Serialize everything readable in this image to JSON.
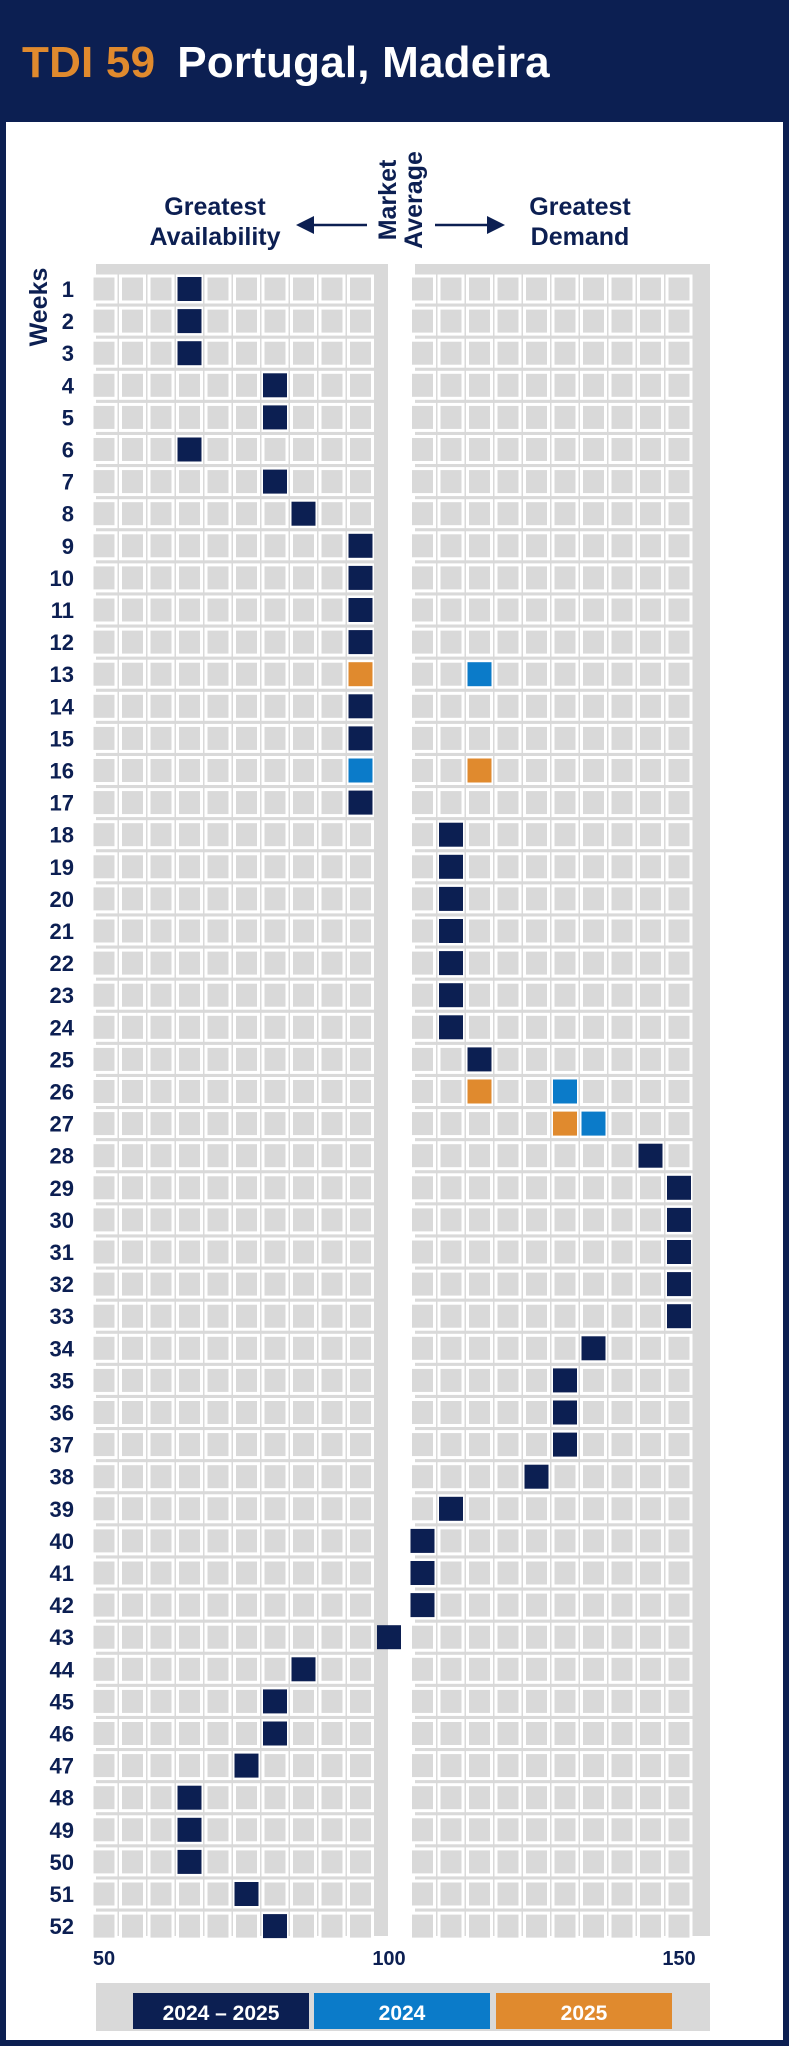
{
  "header": {
    "code": "TDI 59",
    "title": "Portugal, Madeira"
  },
  "labels": {
    "left": [
      "Greatest",
      "Availability"
    ],
    "middle": [
      "Market",
      "Average"
    ],
    "right": [
      "Greatest",
      "Demand"
    ],
    "weeks": "Weeks"
  },
  "colors": {
    "header_bg": "#0c1f52",
    "accent": "#e08a2e",
    "series_2024_2025": "#0c1f52",
    "series_2024": "#0b7bc9",
    "series_2025": "#e08a2e",
    "cell": "#d9d9d9",
    "grid_bg": "#d9d9d9"
  },
  "chart_data": {
    "type": "heatmap",
    "x_ticks": [
      50,
      100,
      150
    ],
    "xlim": [
      50,
      150
    ],
    "x_step": 5,
    "market_average": 100,
    "weeks": [
      1,
      2,
      3,
      4,
      5,
      6,
      7,
      8,
      9,
      10,
      11,
      12,
      13,
      14,
      15,
      16,
      17,
      18,
      19,
      20,
      21,
      22,
      23,
      24,
      25,
      26,
      27,
      28,
      29,
      30,
      31,
      32,
      33,
      34,
      35,
      36,
      37,
      38,
      39,
      40,
      41,
      42,
      43,
      44,
      45,
      46,
      47,
      48,
      49,
      50,
      51,
      52
    ],
    "legend": [
      "2024 – 2025",
      "2024",
      "2025"
    ],
    "series": [
      {
        "name": "2024 – 2025",
        "color": "#0c1f52",
        "values": [
          65,
          65,
          65,
          80,
          80,
          65,
          80,
          85,
          95,
          95,
          95,
          95,
          null,
          95,
          95,
          null,
          95,
          110,
          110,
          110,
          110,
          110,
          110,
          110,
          115,
          null,
          null,
          145,
          150,
          150,
          150,
          150,
          150,
          135,
          130,
          130,
          130,
          125,
          110,
          105,
          105,
          105,
          100,
          85,
          80,
          80,
          75,
          65,
          65,
          65,
          75,
          80
        ]
      },
      {
        "name": "2024",
        "color": "#0b7bc9",
        "values": [
          null,
          null,
          null,
          null,
          null,
          null,
          null,
          null,
          null,
          null,
          null,
          null,
          115,
          null,
          null,
          95,
          null,
          null,
          null,
          null,
          null,
          null,
          null,
          null,
          null,
          130,
          135,
          null,
          null,
          null,
          null,
          null,
          null,
          null,
          null,
          null,
          null,
          null,
          null,
          null,
          null,
          null,
          null,
          null,
          null,
          null,
          null,
          null,
          null,
          null,
          null,
          null
        ]
      },
      {
        "name": "2025",
        "color": "#e08a2e",
        "values": [
          null,
          null,
          null,
          null,
          null,
          null,
          null,
          null,
          null,
          null,
          null,
          null,
          95,
          null,
          null,
          115,
          null,
          null,
          null,
          null,
          null,
          null,
          null,
          null,
          null,
          115,
          130,
          null,
          null,
          null,
          null,
          null,
          null,
          null,
          null,
          null,
          null,
          null,
          null,
          null,
          null,
          null,
          null,
          null,
          null,
          null,
          null,
          null,
          null,
          null,
          null,
          null
        ]
      }
    ]
  }
}
